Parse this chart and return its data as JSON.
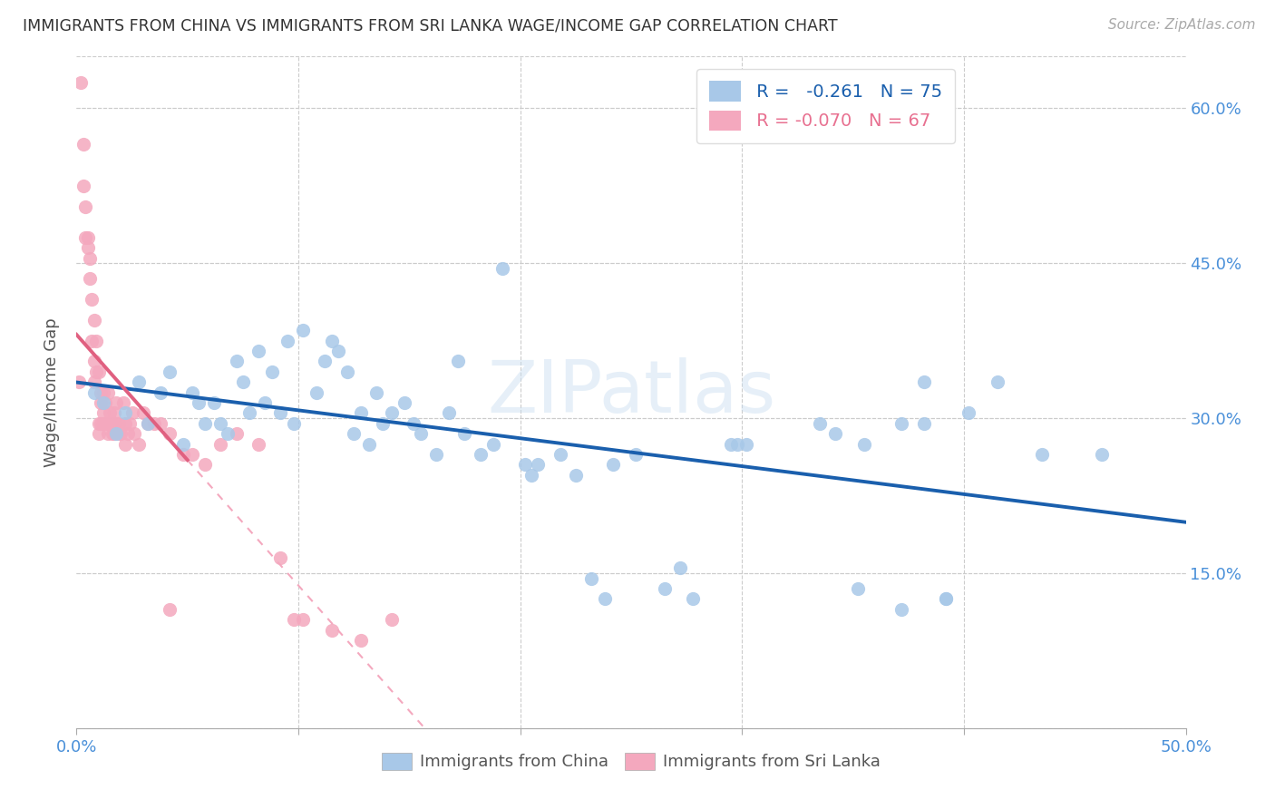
{
  "title": "IMMIGRANTS FROM CHINA VS IMMIGRANTS FROM SRI LANKA WAGE/INCOME GAP CORRELATION CHART",
  "source": "Source: ZipAtlas.com",
  "ylabel": "Wage/Income Gap",
  "xlim": [
    0.0,
    0.5
  ],
  "ylim": [
    0.0,
    0.65
  ],
  "china_color": "#a8c8e8",
  "srilanka_color": "#f4a8be",
  "china_line_color": "#1a5fad",
  "srilanka_line_color": "#e06080",
  "srilanka_dash_color": "#f4a8be",
  "watermark": "ZIPatlas",
  "china_scatter_x": [
    0.008,
    0.012,
    0.018,
    0.022,
    0.028,
    0.032,
    0.038,
    0.042,
    0.048,
    0.052,
    0.055,
    0.058,
    0.062,
    0.065,
    0.068,
    0.072,
    0.075,
    0.078,
    0.082,
    0.085,
    0.088,
    0.092,
    0.095,
    0.098,
    0.102,
    0.108,
    0.112,
    0.115,
    0.118,
    0.122,
    0.125,
    0.128,
    0.132,
    0.135,
    0.138,
    0.142,
    0.148,
    0.152,
    0.155,
    0.162,
    0.168,
    0.172,
    0.175,
    0.182,
    0.188,
    0.192,
    0.202,
    0.205,
    0.208,
    0.218,
    0.225,
    0.232,
    0.238,
    0.242,
    0.252,
    0.265,
    0.272,
    0.278,
    0.295,
    0.302,
    0.335,
    0.352,
    0.372,
    0.382,
    0.392,
    0.402,
    0.415,
    0.435,
    0.462,
    0.372,
    0.382,
    0.392,
    0.355,
    0.342,
    0.298
  ],
  "china_scatter_y": [
    0.325,
    0.315,
    0.285,
    0.305,
    0.335,
    0.295,
    0.325,
    0.345,
    0.275,
    0.325,
    0.315,
    0.295,
    0.315,
    0.295,
    0.285,
    0.355,
    0.335,
    0.305,
    0.365,
    0.315,
    0.345,
    0.305,
    0.375,
    0.295,
    0.385,
    0.325,
    0.355,
    0.375,
    0.365,
    0.345,
    0.285,
    0.305,
    0.275,
    0.325,
    0.295,
    0.305,
    0.315,
    0.295,
    0.285,
    0.265,
    0.305,
    0.355,
    0.285,
    0.265,
    0.275,
    0.445,
    0.255,
    0.245,
    0.255,
    0.265,
    0.245,
    0.145,
    0.125,
    0.255,
    0.265,
    0.135,
    0.155,
    0.125,
    0.275,
    0.275,
    0.295,
    0.135,
    0.115,
    0.335,
    0.125,
    0.305,
    0.335,
    0.265,
    0.265,
    0.295,
    0.295,
    0.125,
    0.275,
    0.285,
    0.275
  ],
  "srilanka_scatter_x": [
    0.001,
    0.002,
    0.003,
    0.003,
    0.004,
    0.004,
    0.005,
    0.005,
    0.006,
    0.006,
    0.007,
    0.007,
    0.008,
    0.008,
    0.008,
    0.009,
    0.009,
    0.01,
    0.01,
    0.01,
    0.011,
    0.011,
    0.011,
    0.012,
    0.012,
    0.012,
    0.013,
    0.013,
    0.014,
    0.014,
    0.015,
    0.015,
    0.016,
    0.016,
    0.017,
    0.017,
    0.018,
    0.018,
    0.019,
    0.019,
    0.02,
    0.021,
    0.022,
    0.022,
    0.023,
    0.024,
    0.025,
    0.026,
    0.028,
    0.03,
    0.032,
    0.035,
    0.038,
    0.042,
    0.048,
    0.052,
    0.058,
    0.065,
    0.072,
    0.082,
    0.092,
    0.102,
    0.115,
    0.128,
    0.142,
    0.098,
    0.042
  ],
  "srilanka_scatter_y": [
    0.335,
    0.625,
    0.525,
    0.565,
    0.505,
    0.475,
    0.475,
    0.465,
    0.455,
    0.435,
    0.375,
    0.415,
    0.395,
    0.335,
    0.355,
    0.345,
    0.375,
    0.295,
    0.285,
    0.345,
    0.325,
    0.295,
    0.315,
    0.295,
    0.325,
    0.305,
    0.315,
    0.295,
    0.285,
    0.325,
    0.305,
    0.295,
    0.285,
    0.295,
    0.305,
    0.285,
    0.295,
    0.315,
    0.285,
    0.295,
    0.285,
    0.315,
    0.295,
    0.275,
    0.285,
    0.295,
    0.305,
    0.285,
    0.275,
    0.305,
    0.295,
    0.295,
    0.295,
    0.285,
    0.265,
    0.265,
    0.255,
    0.275,
    0.285,
    0.275,
    0.165,
    0.105,
    0.095,
    0.085,
    0.105,
    0.105,
    0.115
  ]
}
